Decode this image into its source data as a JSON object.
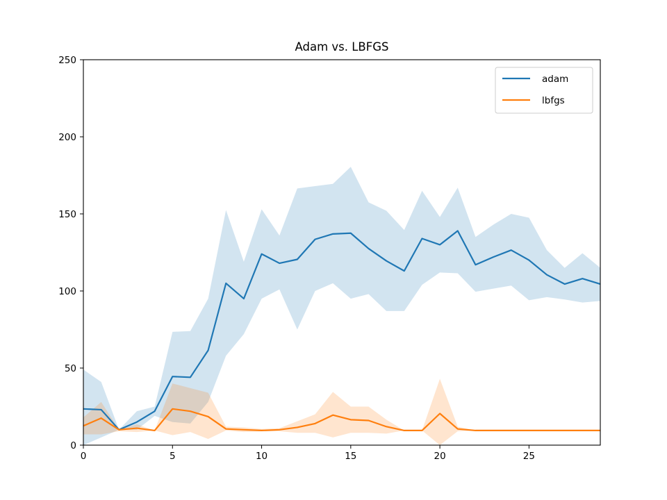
{
  "chart_data": {
    "type": "line",
    "title": "Adam vs. LBFGS",
    "xlabel": "",
    "ylabel": "",
    "xlim": [
      0,
      29
    ],
    "ylim": [
      0,
      250
    ],
    "x_ticks": [
      "0",
      "5",
      "10",
      "15",
      "20",
      "25"
    ],
    "y_ticks": [
      "0",
      "50",
      "100",
      "150",
      "200",
      "250"
    ],
    "grid": false,
    "legend_position": "top-right",
    "x": [
      0,
      1,
      2,
      3,
      4,
      5,
      6,
      7,
      8,
      9,
      10,
      11,
      12,
      13,
      14,
      15,
      16,
      17,
      18,
      19,
      20,
      21,
      22,
      23,
      24,
      25,
      26,
      27,
      28,
      29
    ],
    "series": [
      {
        "name": "adam",
        "color": "#1f77b4",
        "band_color": "#1f77b4",
        "values": [
          23.5,
          23,
          10,
          15,
          22,
          44.5,
          44,
          61.5,
          105,
          95,
          124,
          118,
          120.5,
          133.5,
          137,
          137.5,
          127.5,
          119.5,
          113,
          134,
          130,
          139,
          117,
          122,
          126.5,
          120,
          110.5,
          104.5,
          108,
          104.5
        ],
        "lower": [
          0,
          5,
          10,
          10,
          19,
          15,
          14,
          28,
          58,
          72,
          95,
          101,
          75,
          100,
          105,
          95,
          98,
          87,
          87,
          104,
          112,
          111.5,
          99.5,
          101.5,
          103.5,
          94,
          96,
          94.5,
          92.5,
          93.5
        ],
        "upper": [
          49,
          41,
          10,
          22,
          25,
          73.5,
          74,
          95,
          152.5,
          119,
          153,
          136,
          166.5,
          168,
          169.5,
          180.5,
          157.5,
          152,
          139.5,
          165,
          148,
          167,
          135,
          143,
          150,
          147.5,
          126.5,
          115,
          124.5,
          115
        ]
      },
      {
        "name": "lbfgs",
        "color": "#ff7f0e",
        "band_color": "#ff7f0e",
        "values": [
          12.5,
          17.5,
          10,
          11,
          9.5,
          23.5,
          22,
          18.5,
          10.5,
          10,
          9.5,
          10,
          11.5,
          14,
          19.5,
          16.5,
          16,
          12,
          9.5,
          9.5,
          20.5,
          10.5,
          9.5,
          9.5,
          9.5,
          9.5,
          9.5,
          9.5,
          9.5,
          9.5
        ],
        "lower": [
          7,
          7,
          9,
          8.5,
          9.5,
          6.5,
          8.5,
          4,
          9.5,
          8.5,
          9,
          9,
          8,
          8,
          5,
          8,
          8,
          7.5,
          9.5,
          9.5,
          0,
          9,
          9.5,
          9.5,
          9.5,
          9.5,
          9.5,
          9.5,
          9.5,
          9.5
        ],
        "upper": [
          18,
          28,
          10,
          13.5,
          9.5,
          40,
          37,
          34,
          12,
          11.5,
          10.5,
          11,
          15.5,
          20,
          34.5,
          25,
          25,
          16.5,
          9.5,
          9.5,
          43,
          12,
          9.5,
          9.5,
          9.5,
          9.5,
          9.5,
          9.5,
          9.5,
          9.5
        ]
      }
    ]
  }
}
